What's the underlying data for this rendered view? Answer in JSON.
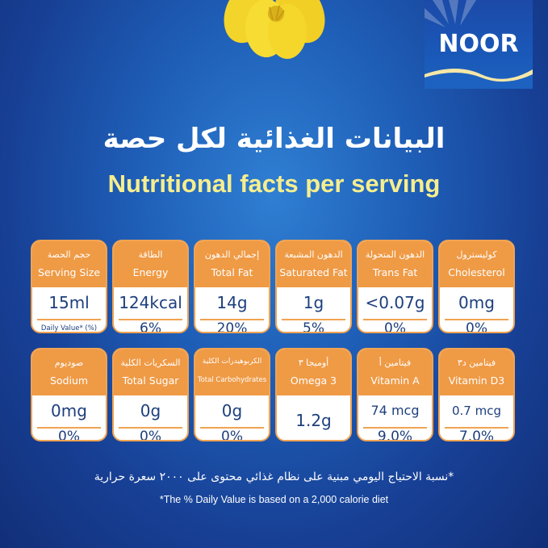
{
  "brand": {
    "logo_text": "NOOR"
  },
  "header": {
    "title_ar": "البيانات الغذائية لكل حصة",
    "title_en": "Nutritional facts per serving"
  },
  "nutrients": [
    {
      "ar": "حجم الحصة",
      "en": "Serving Size",
      "amount": "15ml",
      "dv": "Daily Value* (%)"
    },
    {
      "ar": "الطاقة",
      "en": "Energy",
      "amount": "124kcal",
      "dv": "6%"
    },
    {
      "ar": "إجمالي الدهون",
      "en": "Total Fat",
      "amount": "14g",
      "dv": "20%"
    },
    {
      "ar": "الدهون المشبعة",
      "en": "Saturated Fat",
      "amount": "1g",
      "dv": "5%"
    },
    {
      "ar": "الدهون المتحولة",
      "en": "Trans Fat",
      "amount": "<0.07g",
      "dv": "0%"
    },
    {
      "ar": "كوليسترول",
      "en": "Cholesterol",
      "amount": "0mg",
      "dv": "0%"
    },
    {
      "ar": "صوديوم",
      "en": "Sodium",
      "amount": "0mg",
      "dv": "0%"
    },
    {
      "ar": "السكريات الكلية",
      "en": "Total Sugar",
      "amount": "0g",
      "dv": "0%"
    },
    {
      "ar": "الكربوهيدرات الكلية",
      "en": "Total Carbohydrates",
      "amount": "0g",
      "dv": "0%"
    },
    {
      "ar": "أوميجا ٣",
      "en": "Omega 3",
      "amount": "1.2g",
      "dv": ""
    },
    {
      "ar": "فيتامين أ",
      "en": "Vitamin A",
      "amount": "74 mcg",
      "dv": "9.0%"
    },
    {
      "ar": "فيتامين د٣",
      "en": "Vitamin D3",
      "amount": "0.7 mcg",
      "dv": "7.0%"
    }
  ],
  "footnote": {
    "ar": "*نسبة الاحتياج اليومي مبنية على نظام غذائي محتوى على ٢٠٠٠ سعرة حرارية",
    "en": "*The % Daily Value is based on a 2,000 calorie diet"
  },
  "colors": {
    "background": "#1f5fb8",
    "card_header": "#ef9a45",
    "title_en": "#f6ee8e",
    "value_text": "#1d3f7e"
  }
}
